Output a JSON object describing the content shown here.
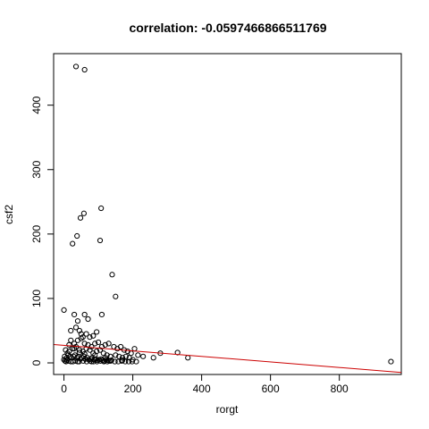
{
  "chart_data": {
    "type": "scatter",
    "title": "correlation:  -0.0597466866511769",
    "xlabel": "rorgt",
    "ylabel": "csf2",
    "xlim": [
      -30,
      980
    ],
    "ylim": [
      -18,
      480
    ],
    "x_ticks": [
      0,
      200,
      400,
      600,
      800
    ],
    "y_ticks": [
      0,
      100,
      200,
      300,
      400
    ],
    "grid": false,
    "legend": "none",
    "point_color": "#000000",
    "line_color": "#cc0000",
    "regression_line": {
      "x": [
        -30,
        980
      ],
      "y": [
        28.5,
        -14.8
      ]
    },
    "x": [
      35,
      60,
      48,
      58,
      108,
      38,
      25,
      105,
      140,
      150,
      0,
      110,
      30,
      60,
      70,
      40,
      20,
      35,
      45,
      50,
      55,
      65,
      75,
      85,
      95,
      20,
      30,
      40,
      50,
      60,
      70,
      80,
      90,
      100,
      110,
      120,
      130,
      145,
      155,
      165,
      175,
      185,
      195,
      205,
      215,
      230,
      260,
      280,
      330,
      360,
      950,
      5,
      10,
      15,
      25,
      35,
      45,
      55,
      65,
      75,
      85,
      95,
      105,
      115,
      125,
      135,
      150,
      160,
      170,
      180,
      190,
      200,
      2,
      8,
      12,
      18,
      22,
      28,
      32,
      38,
      42,
      48,
      52,
      58,
      62,
      68,
      72,
      78,
      82,
      88,
      92,
      98,
      102,
      108,
      112,
      118,
      122,
      128,
      132,
      138,
      0,
      3,
      6,
      9,
      14,
      26,
      33,
      44,
      56,
      66,
      76,
      86,
      96,
      106,
      116,
      126,
      136,
      148,
      158,
      168,
      178,
      188,
      198,
      210,
      15,
      30,
      45,
      60,
      90,
      120,
      170,
      20,
      40,
      80
    ],
    "y": [
      460,
      455,
      225,
      232,
      240,
      197,
      185,
      190,
      137,
      103,
      82,
      75,
      75,
      75,
      68,
      65,
      50,
      55,
      50,
      45,
      40,
      45,
      40,
      42,
      48,
      35,
      30,
      35,
      38,
      30,
      28,
      25,
      30,
      32,
      25,
      28,
      30,
      25,
      22,
      25,
      20,
      18,
      15,
      22,
      12,
      10,
      8,
      15,
      16,
      8,
      2,
      20,
      15,
      18,
      22,
      25,
      20,
      18,
      22,
      20,
      15,
      18,
      20,
      15,
      12,
      10,
      12,
      10,
      8,
      10,
      8,
      5,
      10,
      8,
      12,
      10,
      8,
      10,
      12,
      8,
      10,
      6,
      8,
      10,
      6,
      8,
      5,
      6,
      8,
      5,
      6,
      4,
      5,
      6,
      4,
      3,
      5,
      4,
      3,
      4,
      5,
      3,
      2,
      4,
      3,
      2,
      3,
      2,
      3,
      2,
      3,
      2,
      2,
      3,
      2,
      2,
      3,
      2,
      2,
      3,
      2,
      2,
      2,
      2,
      28,
      22,
      16,
      14,
      12,
      8,
      4,
      2,
      2,
      2
    ]
  }
}
